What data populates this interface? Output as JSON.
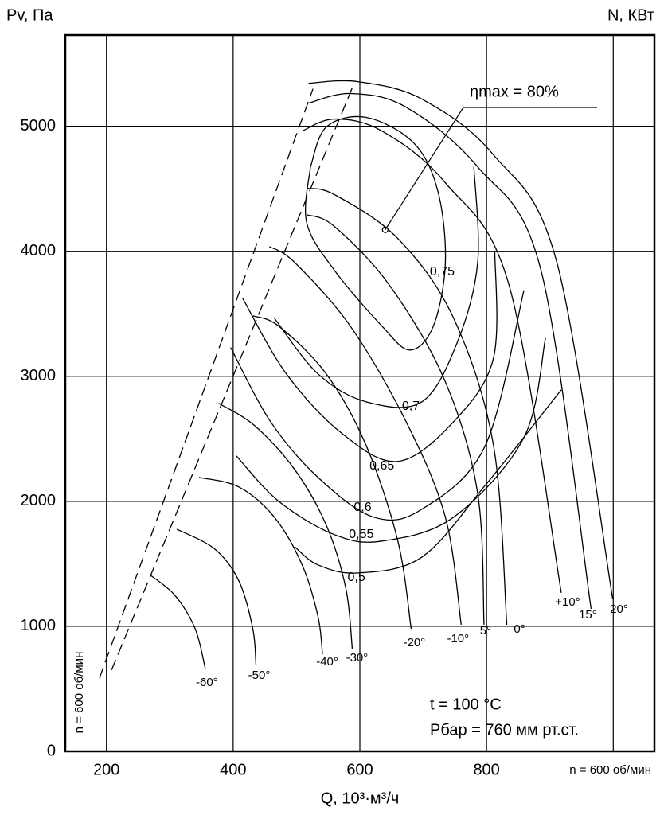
{
  "chart_data": {
    "type": "line",
    "y_title": "Pv, Па",
    "y2_title": "N, КВт",
    "x_title": "Q, 10³·м³/ч",
    "rpm_note": "n = 600 об/мин",
    "notes": [
      "t = 100 °C",
      "Рбар = 760 мм рт.ст."
    ],
    "xlim": [
      135,
      1065
    ],
    "ylim": [
      0,
      5730
    ],
    "xticks": [
      200,
      400,
      600,
      800
    ],
    "xgrid": [
      200,
      400,
      600,
      800,
      1000
    ],
    "yticks": [
      0,
      1000,
      2000,
      3000,
      4000,
      5000
    ],
    "ygrid": [
      1000,
      2000,
      3000,
      4000,
      5000
    ],
    "grid": true,
    "color": "#000000",
    "series": [
      {
        "name": "-60°",
        "x": [
          268,
          308,
          340,
          356
        ],
        "values": [
          1414,
          1248,
          981,
          662
        ]
      },
      {
        "name": "-50°",
        "x": [
          311,
          371,
          409,
          431,
          436
        ],
        "values": [
          1777,
          1618,
          1363,
          981,
          694
        ]
      },
      {
        "name": "-40°",
        "x": [
          346,
          409,
          465,
          509,
          534,
          541
        ],
        "values": [
          2191,
          2115,
          1873,
          1490,
          1077,
          777
        ]
      },
      {
        "name": "-30°",
        "x": [
          377,
          434,
          497,
          547,
          578,
          588
        ],
        "values": [
          2784,
          2605,
          2255,
          1809,
          1300,
          822
        ]
      },
      {
        "name": "-20°",
        "x": [
          431,
          472,
          547,
          610,
          660,
          681
        ],
        "values": [
          3484,
          3401,
          3019,
          2446,
          1682,
          981
        ]
      },
      {
        "name": "-10°",
        "x": [
          457,
          497,
          585,
          673,
          735,
          760
        ],
        "values": [
          4038,
          3911,
          3401,
          2637,
          1873,
          1013
        ]
      },
      {
        "name": "5°",
        "x": [
          516,
          560,
          648,
          735,
          786,
          796
        ],
        "values": [
          4293,
          4198,
          3720,
          2956,
          2064,
          1013
        ]
      },
      {
        "name": "0°",
        "x": [
          516,
          560,
          660,
          748,
          811,
          832
        ],
        "values": [
          4504,
          4453,
          4102,
          3465,
          2446,
          1013
        ]
      },
      {
        "name": "+10°",
        "x": [
          509,
          560,
          635,
          735,
          836,
          918
        ],
        "values": [
          4962,
          5058,
          4962,
          4548,
          3720,
          1268
        ]
      },
      {
        "name": "15°",
        "x": [
          519,
          585,
          673,
          786,
          886,
          965
        ],
        "values": [
          5185,
          5262,
          5153,
          4675,
          3847,
          1140
        ]
      },
      {
        "name": "20°",
        "x": [
          519,
          597,
          698,
          811,
          911,
          999
        ],
        "values": [
          5344,
          5357,
          5217,
          4771,
          3911,
          1223
        ]
      }
    ],
    "efficiency": [
      {
        "name": "0,5",
        "x": [
          497,
          534,
          597,
          698,
          798,
          918
        ],
        "values": [
          1637,
          1491,
          1427,
          1554,
          2128,
          2892
        ]
      },
      {
        "name": "0,55",
        "x": [
          405,
          472,
          560,
          635,
          748,
          859,
          893
        ],
        "values": [
          2363,
          2000,
          1733,
          1682,
          1873,
          2510,
          3306
        ]
      },
      {
        "name": "0,6",
        "x": [
          396,
          459,
          534,
          622,
          698,
          798,
          859
        ],
        "values": [
          3230,
          2637,
          2191,
          1873,
          1937,
          2446,
          3688
        ]
      },
      {
        "name": "0,65",
        "x": [
          415,
          484,
          572,
          660,
          748,
          811,
          813
        ],
        "values": [
          3624,
          3019,
          2542,
          2319,
          2637,
          3147,
          4006
        ]
      },
      {
        "name": "0,7",
        "x": [
          465,
          534,
          610,
          698,
          754,
          786,
          780
        ],
        "values": [
          3465,
          3019,
          2796,
          2796,
          3274,
          3911,
          4675
        ]
      },
      {
        "name": "0,75",
        "x": [
          522,
          516,
          560,
          635,
          679,
          716,
          735,
          723,
          685,
          610,
          547,
          522
        ],
        "values": [
          4675,
          4230,
          3847,
          3401,
          3210,
          3401,
          3911,
          4484,
          4867,
          5071,
          4994,
          4675
        ]
      }
    ],
    "surge_lines": [
      {
        "x": [
          189,
          526
        ],
        "values": [
          586,
          5300
        ],
        "dashed": true
      },
      {
        "x": [
          208,
          591
        ],
        "values": [
          650,
          5344
        ],
        "dashed": true
      }
    ],
    "annotations": [
      {
        "text": "ηmax = 80%",
        "x": 640,
        "y": 4172
      }
    ]
  }
}
